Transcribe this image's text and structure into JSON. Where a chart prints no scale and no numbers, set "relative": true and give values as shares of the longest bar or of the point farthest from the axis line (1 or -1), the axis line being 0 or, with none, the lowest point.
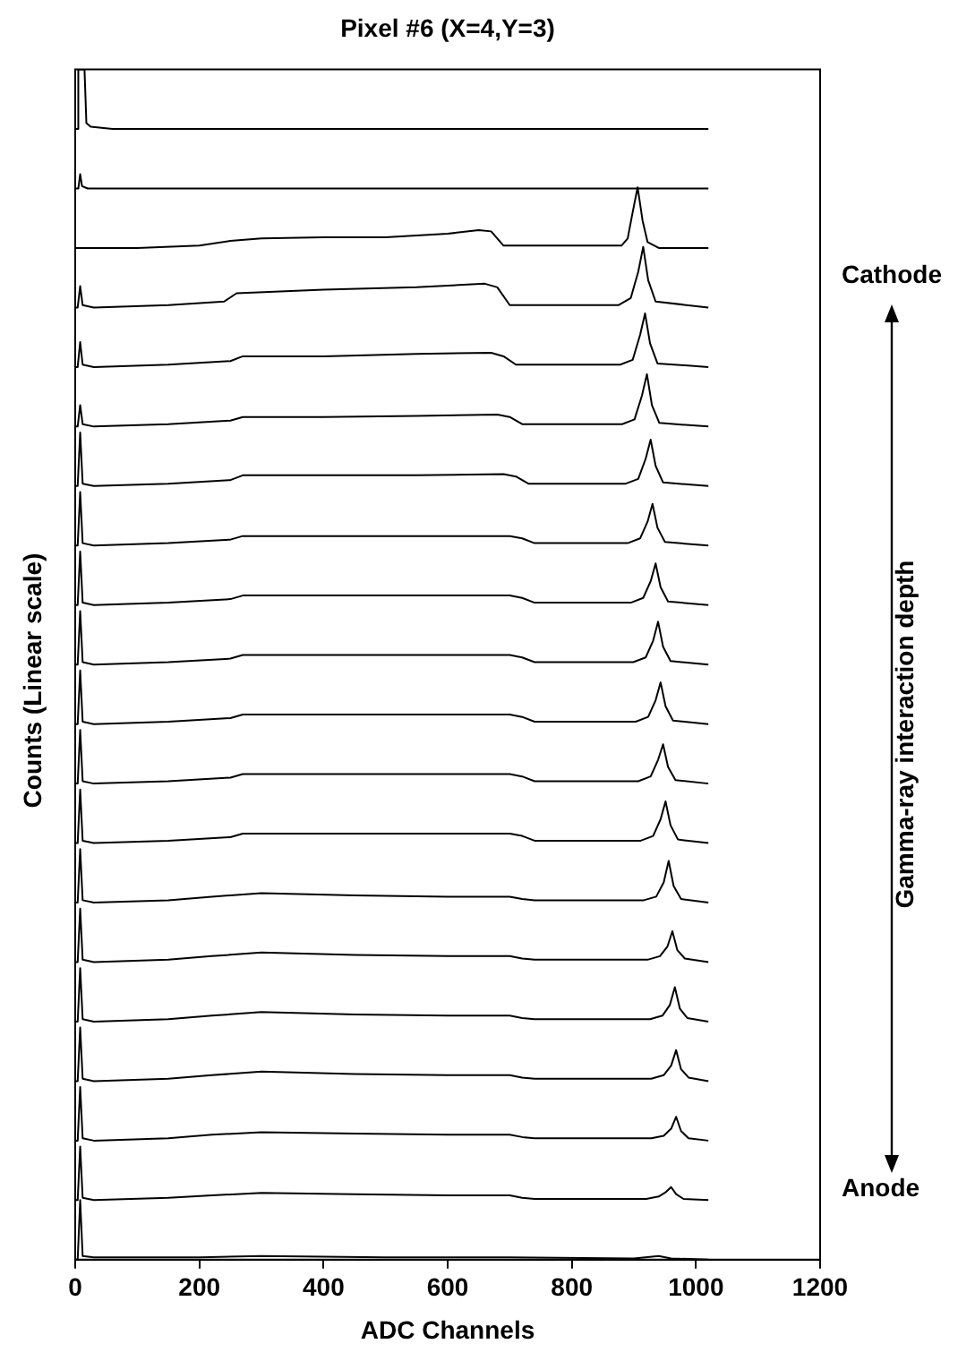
{
  "chart_data": {
    "type": "line",
    "title": "Pixel #6 (X=4,Y=3)",
    "xlabel": "ADC Channels",
    "ylabel": "Counts (Linear scale)",
    "annotations": [
      "Cathode",
      "Gamma-ray interaction depth",
      "Anode"
    ],
    "relative": true,
    "xlim": [
      0,
      1200
    ],
    "xticks": [
      0,
      200,
      400,
      600,
      800,
      1000,
      1200
    ],
    "grid": false,
    "legend": false,
    "marker": "none",
    "line_style": "solid",
    "series": [
      {
        "color": "#000000",
        "x": [
          0,
          3,
          5,
          15,
          18,
          25,
          60,
          1020
        ],
        "values": [
          0.95,
          0.95,
          1.0,
          1.0,
          0.955,
          0.952,
          0.95,
          0.95
        ]
      },
      {
        "color": "#000000",
        "x": [
          0,
          5,
          8,
          11,
          20,
          1020
        ],
        "values": [
          0.9,
          0.9,
          0.912,
          0.902,
          0.9,
          0.9
        ]
      },
      {
        "color": "#000000",
        "x": [
          0,
          100,
          200,
          250,
          300,
          400,
          500,
          600,
          650,
          670,
          690,
          880,
          890,
          898,
          906,
          914,
          922,
          940,
          1020
        ],
        "values": [
          0.85,
          0.85,
          0.852,
          0.856,
          0.858,
          0.859,
          0.859,
          0.862,
          0.865,
          0.864,
          0.852,
          0.852,
          0.858,
          0.88,
          0.901,
          0.873,
          0.855,
          0.85,
          0.85
        ]
      },
      {
        "color": "#000000",
        "x": [
          0,
          4,
          8,
          12,
          30,
          150,
          240,
          260,
          400,
          550,
          660,
          680,
          700,
          875,
          895,
          907,
          915,
          923,
          935,
          1020
        ],
        "values": [
          0.8,
          0.8,
          0.818,
          0.802,
          0.8,
          0.802,
          0.805,
          0.812,
          0.815,
          0.817,
          0.82,
          0.817,
          0.802,
          0.802,
          0.808,
          0.83,
          0.851,
          0.823,
          0.805,
          0.8
        ]
      },
      {
        "color": "#000000",
        "x": [
          0,
          4,
          8,
          12,
          30,
          150,
          250,
          270,
          400,
          550,
          670,
          690,
          710,
          878,
          898,
          910,
          918,
          926,
          938,
          1020
        ],
        "values": [
          0.75,
          0.75,
          0.771,
          0.752,
          0.75,
          0.752,
          0.755,
          0.759,
          0.759,
          0.761,
          0.762,
          0.759,
          0.752,
          0.752,
          0.756,
          0.777,
          0.795,
          0.77,
          0.753,
          0.75
        ]
      },
      {
        "color": "#000000",
        "x": [
          0,
          4,
          8,
          12,
          30,
          150,
          250,
          270,
          400,
          550,
          680,
          700,
          720,
          881,
          901,
          913,
          921,
          929,
          941,
          1020
        ],
        "values": [
          0.7,
          0.7,
          0.718,
          0.702,
          0.7,
          0.702,
          0.705,
          0.708,
          0.708,
          0.709,
          0.71,
          0.708,
          0.702,
          0.702,
          0.706,
          0.726,
          0.744,
          0.718,
          0.703,
          0.7
        ]
      },
      {
        "color": "#000000",
        "x": [
          0,
          4,
          8,
          12,
          30,
          150,
          250,
          270,
          400,
          550,
          690,
          710,
          730,
          887,
          907,
          919,
          927,
          935,
          947,
          1020
        ],
        "values": [
          0.65,
          0.65,
          0.695,
          0.652,
          0.65,
          0.652,
          0.655,
          0.659,
          0.659,
          0.659,
          0.66,
          0.658,
          0.652,
          0.652,
          0.656,
          0.673,
          0.689,
          0.667,
          0.653,
          0.65
        ]
      },
      {
        "color": "#000000",
        "x": [
          0,
          4,
          8,
          12,
          30,
          150,
          250,
          270,
          400,
          550,
          700,
          720,
          740,
          890,
          910,
          922,
          930,
          938,
          950,
          1020
        ],
        "values": [
          0.6,
          0.6,
          0.645,
          0.602,
          0.6,
          0.602,
          0.605,
          0.608,
          0.608,
          0.608,
          0.608,
          0.606,
          0.602,
          0.602,
          0.606,
          0.62,
          0.635,
          0.615,
          0.603,
          0.6
        ]
      },
      {
        "color": "#000000",
        "x": [
          0,
          4,
          8,
          12,
          30,
          150,
          250,
          270,
          400,
          550,
          700,
          720,
          740,
          895,
          915,
          927,
          935,
          943,
          955,
          1020
        ],
        "values": [
          0.55,
          0.55,
          0.595,
          0.552,
          0.55,
          0.552,
          0.555,
          0.558,
          0.558,
          0.558,
          0.558,
          0.556,
          0.552,
          0.552,
          0.556,
          0.57,
          0.585,
          0.565,
          0.553,
          0.55
        ]
      },
      {
        "color": "#000000",
        "x": [
          0,
          4,
          8,
          12,
          30,
          150,
          250,
          270,
          400,
          550,
          700,
          720,
          740,
          899,
          919,
          931,
          939,
          947,
          959,
          1020
        ],
        "values": [
          0.5,
          0.5,
          0.545,
          0.502,
          0.5,
          0.502,
          0.505,
          0.508,
          0.508,
          0.508,
          0.508,
          0.506,
          0.502,
          0.502,
          0.506,
          0.52,
          0.536,
          0.515,
          0.503,
          0.5
        ]
      },
      {
        "color": "#000000",
        "x": [
          0,
          4,
          8,
          12,
          30,
          150,
          250,
          270,
          400,
          550,
          700,
          720,
          740,
          903,
          923,
          935,
          943,
          951,
          963,
          1020
        ],
        "values": [
          0.45,
          0.45,
          0.495,
          0.452,
          0.45,
          0.452,
          0.455,
          0.458,
          0.458,
          0.458,
          0.458,
          0.456,
          0.452,
          0.452,
          0.456,
          0.47,
          0.485,
          0.465,
          0.453,
          0.45
        ]
      },
      {
        "color": "#000000",
        "x": [
          0,
          4,
          8,
          12,
          30,
          150,
          250,
          270,
          400,
          550,
          700,
          720,
          740,
          907,
          927,
          939,
          947,
          955,
          967,
          1020
        ],
        "values": [
          0.4,
          0.4,
          0.445,
          0.402,
          0.4,
          0.402,
          0.405,
          0.408,
          0.408,
          0.408,
          0.408,
          0.406,
          0.402,
          0.402,
          0.406,
          0.42,
          0.433,
          0.414,
          0.403,
          0.4
        ]
      },
      {
        "color": "#000000",
        "x": [
          0,
          4,
          8,
          12,
          30,
          150,
          250,
          270,
          400,
          550,
          700,
          720,
          740,
          911,
          931,
          943,
          951,
          959,
          971,
          1020
        ],
        "values": [
          0.35,
          0.35,
          0.395,
          0.352,
          0.35,
          0.352,
          0.355,
          0.358,
          0.358,
          0.358,
          0.358,
          0.356,
          0.352,
          0.352,
          0.356,
          0.37,
          0.385,
          0.365,
          0.353,
          0.35
        ]
      },
      {
        "color": "#000000",
        "x": [
          0,
          4,
          8,
          12,
          30,
          150,
          220,
          300,
          450,
          600,
          700,
          720,
          740,
          916,
          936,
          948,
          956,
          964,
          976,
          1020
        ],
        "values": [
          0.3,
          0.3,
          0.345,
          0.302,
          0.3,
          0.302,
          0.305,
          0.308,
          0.306,
          0.305,
          0.305,
          0.303,
          0.302,
          0.302,
          0.305,
          0.317,
          0.335,
          0.314,
          0.303,
          0.3
        ]
      },
      {
        "color": "#000000",
        "x": [
          0,
          4,
          8,
          12,
          30,
          150,
          220,
          300,
          450,
          600,
          700,
          720,
          740,
          922,
          942,
          954,
          962,
          970,
          982,
          1020
        ],
        "values": [
          0.25,
          0.25,
          0.295,
          0.252,
          0.25,
          0.252,
          0.255,
          0.258,
          0.256,
          0.255,
          0.255,
          0.253,
          0.252,
          0.252,
          0.255,
          0.263,
          0.276,
          0.26,
          0.253,
          0.25
        ]
      },
      {
        "color": "#000000",
        "x": [
          0,
          4,
          8,
          12,
          30,
          150,
          220,
          300,
          450,
          600,
          700,
          720,
          740,
          926,
          946,
          958,
          966,
          974,
          986,
          1020
        ],
        "values": [
          0.2,
          0.2,
          0.245,
          0.202,
          0.2,
          0.202,
          0.205,
          0.208,
          0.206,
          0.205,
          0.205,
          0.203,
          0.202,
          0.202,
          0.205,
          0.214,
          0.229,
          0.211,
          0.203,
          0.2
        ]
      },
      {
        "color": "#000000",
        "x": [
          0,
          4,
          8,
          12,
          30,
          150,
          220,
          300,
          450,
          600,
          700,
          720,
          740,
          928,
          948,
          960,
          968,
          976,
          988,
          1020
        ],
        "values": [
          0.15,
          0.15,
          0.195,
          0.152,
          0.15,
          0.152,
          0.155,
          0.158,
          0.156,
          0.155,
          0.155,
          0.153,
          0.152,
          0.152,
          0.155,
          0.163,
          0.176,
          0.16,
          0.153,
          0.15
        ]
      },
      {
        "color": "#000000",
        "x": [
          0,
          4,
          8,
          12,
          30,
          150,
          220,
          300,
          450,
          600,
          700,
          720,
          740,
          928,
          948,
          960,
          968,
          976,
          988,
          1020
        ],
        "values": [
          0.1,
          0.1,
          0.145,
          0.102,
          0.1,
          0.102,
          0.105,
          0.107,
          0.106,
          0.105,
          0.105,
          0.103,
          0.102,
          0.102,
          0.104,
          0.11,
          0.12,
          0.108,
          0.102,
          0.1
        ]
      },
      {
        "color": "#000000",
        "x": [
          0,
          4,
          8,
          12,
          30,
          150,
          220,
          300,
          450,
          600,
          700,
          720,
          740,
          920,
          940,
          952,
          960,
          968,
          980,
          1020
        ],
        "values": [
          0.05,
          0.05,
          0.095,
          0.052,
          0.05,
          0.052,
          0.054,
          0.056,
          0.055,
          0.054,
          0.054,
          0.052,
          0.051,
          0.051,
          0.053,
          0.057,
          0.061,
          0.055,
          0.051,
          0.05
        ]
      },
      {
        "color": "#000000",
        "x": [
          0,
          4,
          8,
          12,
          30,
          200,
          300,
          500,
          700,
          900,
          940,
          960,
          1020
        ],
        "values": [
          0,
          0,
          0.05,
          0.003,
          0.002,
          0.002,
          0.003,
          0.002,
          0.002,
          0.001,
          0.003,
          0.001,
          0
        ]
      }
    ]
  }
}
